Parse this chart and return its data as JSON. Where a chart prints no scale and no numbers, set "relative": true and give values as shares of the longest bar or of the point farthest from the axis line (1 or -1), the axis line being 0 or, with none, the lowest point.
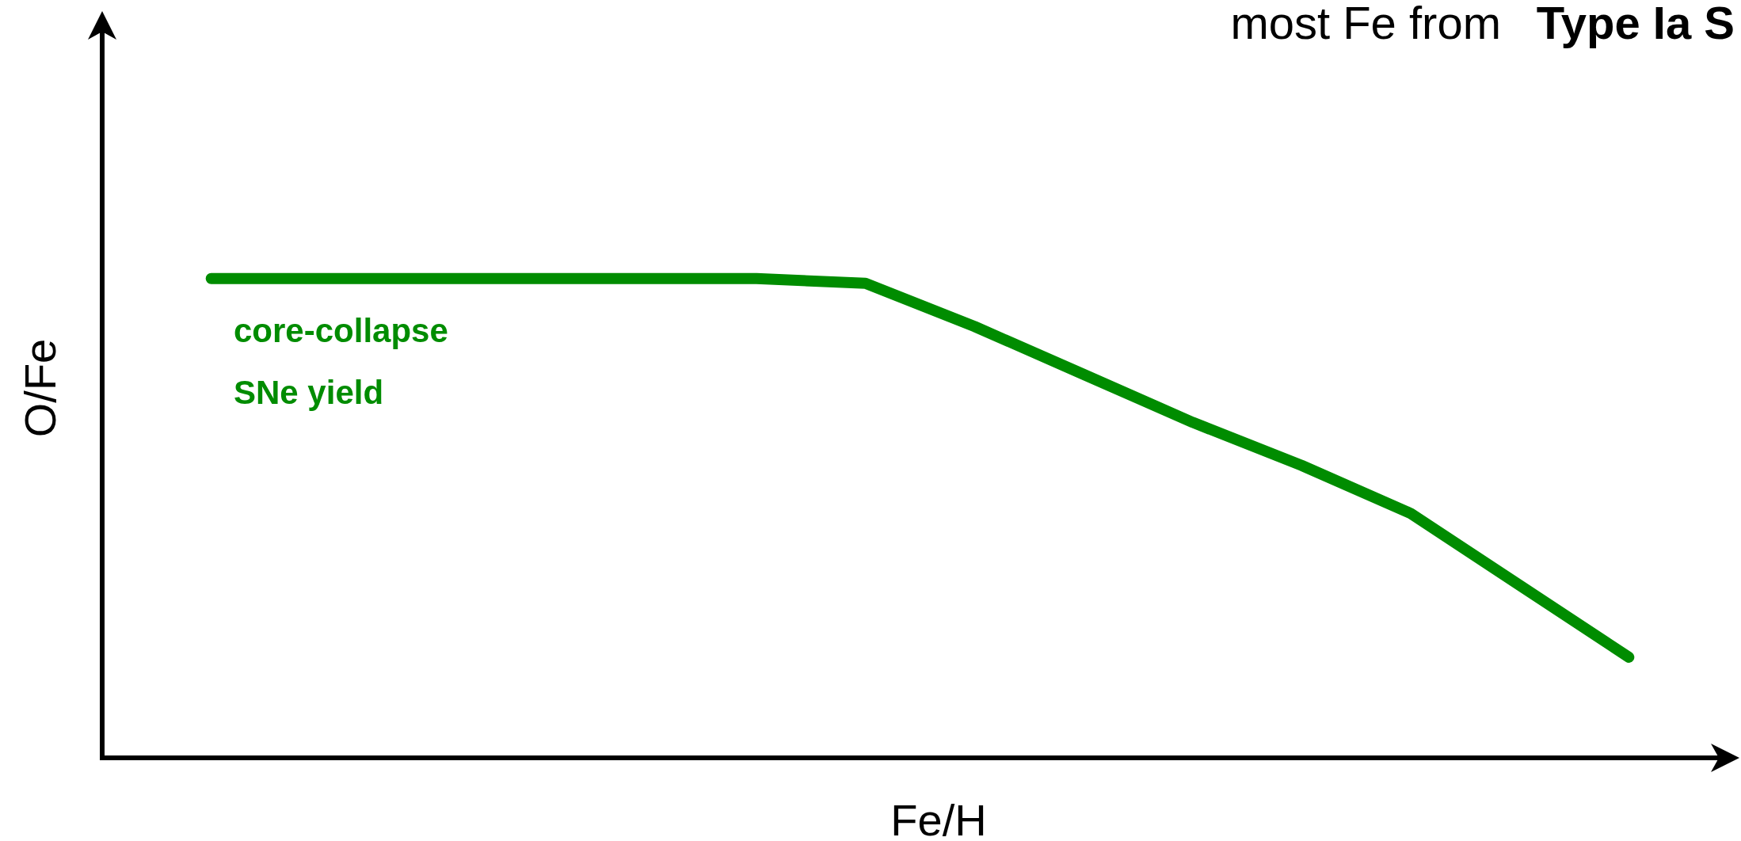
{
  "chart_data": {
    "type": "line",
    "relative": true,
    "xlabel": "Fe/H",
    "ylabel": "O/Fe",
    "annotations": [
      "most Fe from",
      "Type Ia S"
    ],
    "categories": [
      null,
      null,
      null,
      null,
      null,
      null,
      null,
      null,
      null,
      null,
      null,
      null,
      null,
      null
    ],
    "series": [
      {
        "name": "core-collapse SNe yield",
        "color": "#008c00",
        "values": [
          1,
          1,
          1,
          1,
          1,
          1,
          0.99,
          0.9,
          0.8,
          0.7,
          0.61,
          0.51,
          0.36,
          0.21
        ]
      }
    ],
    "grid": false,
    "legend": false,
    "line_style": "solid"
  }
}
